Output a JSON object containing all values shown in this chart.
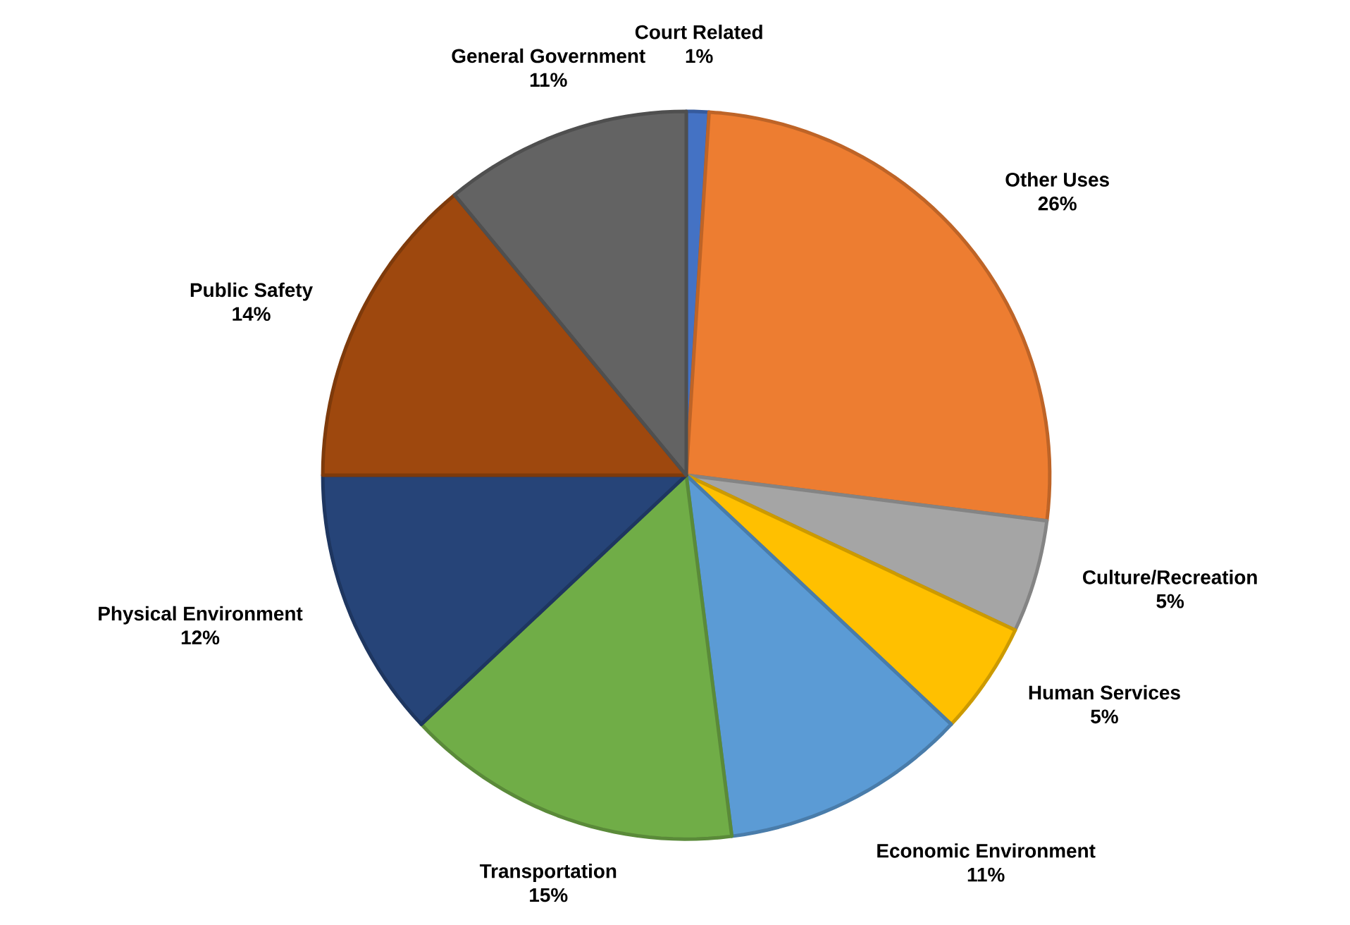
{
  "chart_data": {
    "type": "pie",
    "categories": [
      "Court Related",
      "Other Uses",
      "Culture/Recreation",
      "Human Services",
      "Economic Environment",
      "Transportation",
      "Physical Environment",
      "Public Safety",
      "General Government"
    ],
    "values": [
      1,
      26,
      5,
      5,
      11,
      15,
      12,
      14,
      11
    ],
    "value_labels": [
      "1%",
      "26%",
      "5%",
      "5%",
      "11%",
      "15%",
      "12%",
      "14%",
      "11%"
    ],
    "colors": [
      "#4472c4",
      "#ed7d31",
      "#a5a5a5",
      "#ffc000",
      "#5b9bd5",
      "#70ad47",
      "#264478",
      "#9e480e",
      "#636363"
    ]
  }
}
